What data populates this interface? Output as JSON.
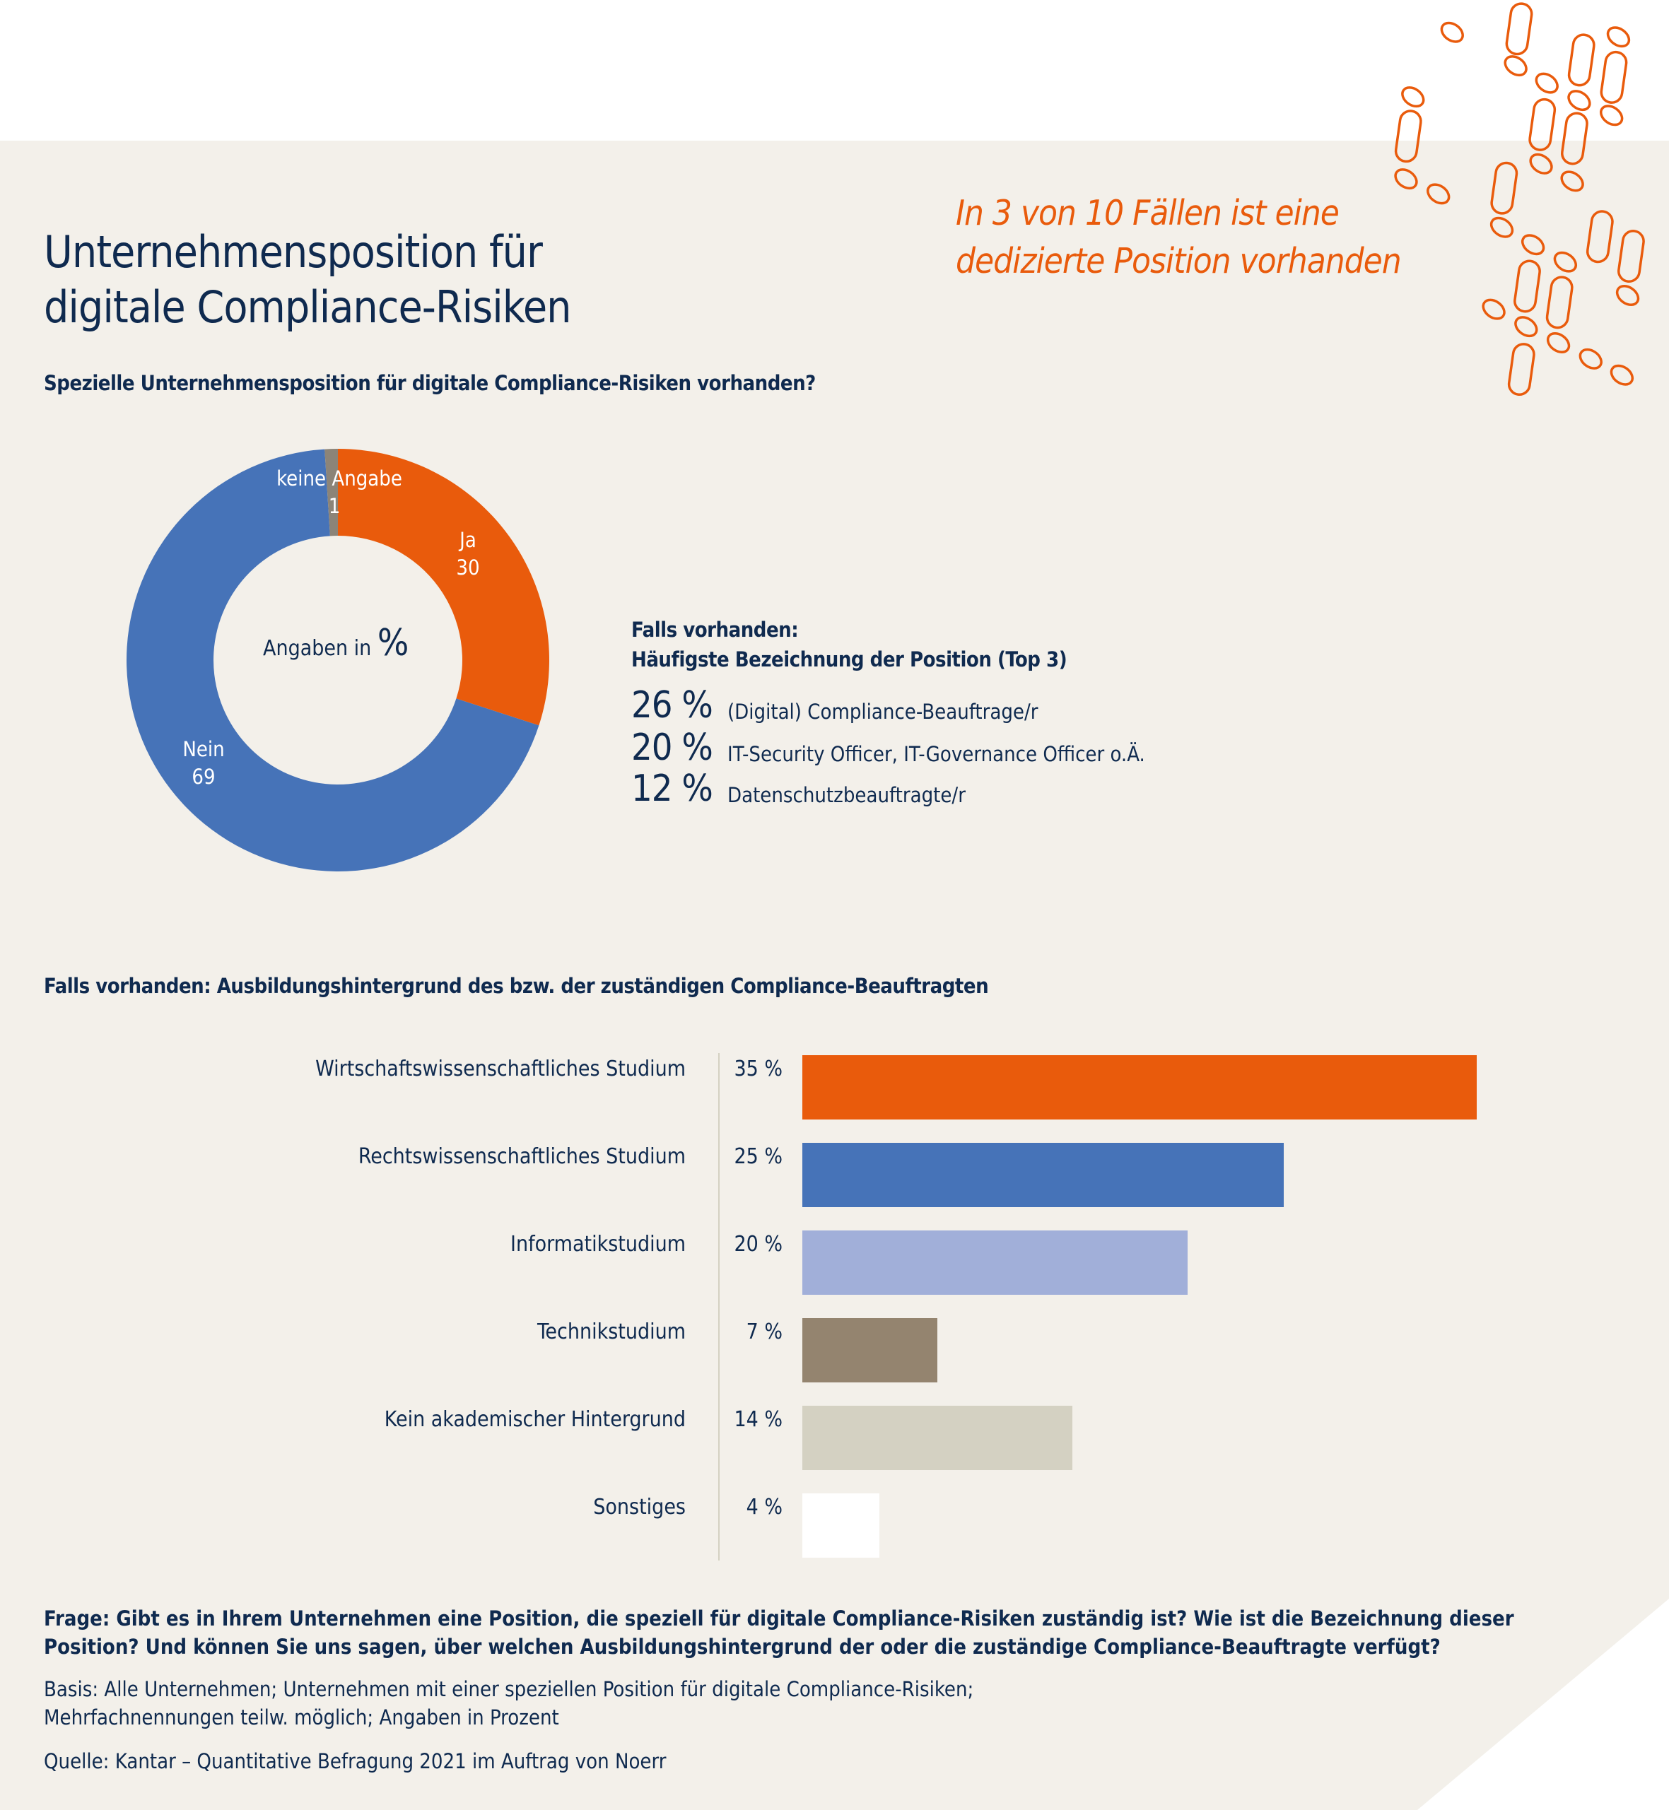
{
  "title_lines": [
    "Unternehmensposition für",
    "digitale Compliance-Risiken"
  ],
  "highlight_lines": [
    "In 3 von 10 Fällen ist eine",
    "dedizierte Position vorhanden"
  ],
  "colors": {
    "orange": "#e95b0c",
    "blue": "#4673b8",
    "light_blue": "#a1afd9",
    "brown": "#94846f",
    "beige": "#d4d1c2",
    "white": "#ffffff",
    "background": "#f3f0ea",
    "navy": "#0f2a4f",
    "gray": "#8c8478"
  },
  "chart_data": [
    {
      "type": "pie",
      "variant": "donut",
      "title": "Spezielle Unternehmensposition für digitale Compliance-Risiken vorhanden?",
      "center_label": {
        "text": "Angaben in",
        "unit": "%"
      },
      "slices": [
        {
          "label": "Ja",
          "value": 30,
          "color": "#e95b0c"
        },
        {
          "label": "Nein",
          "value": 69,
          "color": "#4673b8"
        },
        {
          "label": "keine Angabe",
          "value": 1,
          "color": "#8c8478"
        }
      ]
    },
    {
      "type": "table",
      "title_lines": [
        "Falls vorhanden:",
        "Häufigste Bezeichnung der Position (Top 3)"
      ],
      "rows": [
        {
          "value": "26 %",
          "label": "(Digital) Compliance-Beauftrage/r"
        },
        {
          "value": "20 %",
          "label": "IT-Security Officer, IT-Governance Officer o.Ä."
        },
        {
          "value": "12 %",
          "label": "Datenschutzbeauftragte/r"
        }
      ]
    },
    {
      "type": "bar",
      "orientation": "horizontal",
      "title": "Falls vorhanden: Ausbildungshintergrund des bzw. der zuständigen Compliance-Beauftragten",
      "categories": [
        "Wirtschaftswissenschaftliches Studium",
        "Rechtswissenschaftliches Studium",
        "Informatikstudium",
        "Technikstudium",
        "Kein akademischer Hintergrund",
        "Sonstiges"
      ],
      "values": [
        35,
        25,
        20,
        7,
        14,
        4
      ],
      "value_labels": [
        "35 %",
        "25 %",
        "20 %",
        "7 %",
        "14 %",
        "4 %"
      ],
      "bar_colors": [
        "#e95b0c",
        "#4673b8",
        "#a1afd9",
        "#94846f",
        "#d4d1c2",
        "#ffffff"
      ],
      "unit": "%"
    }
  ],
  "footer": {
    "question_lines": [
      "Frage: Gibt es in Ihrem Unternehmen eine Position, die speziell für digitale Compliance-Risiken zuständig ist? Wie ist die Bezeichnung dieser",
      "Position? Und können Sie uns sagen, über welchen Ausbildungshintergrund der oder die zuständige Compliance-Beauftragte verfügt?"
    ],
    "basis_lines": [
      "Basis: Alle Unternehmen; Unternehmen mit einer speziellen Position für digitale Compliance-Risiken;",
      "Mehrfachnennungen teilw. möglich; Angaben in Prozent"
    ],
    "source": "Quelle: Kantar – Quantitative Befragung 2021 im Auftrag von Noerr"
  }
}
